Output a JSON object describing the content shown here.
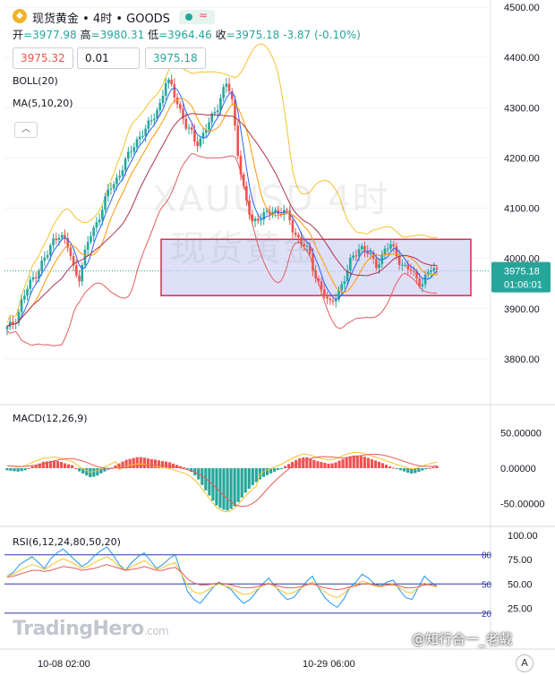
{
  "header": {
    "symbol_title": "现货黄金 • 4时 • GOODS",
    "coin_icon": "gold-coin-icon",
    "status_icons": [
      "market-open-dot-icon",
      "wave-icon"
    ],
    "ohlc": [
      {
        "label": "开",
        "value": "=3977.98"
      },
      {
        "label": "高",
        "value": "=3980.31"
      },
      {
        "label": "低",
        "value": "=3964.46"
      },
      {
        "label": "收",
        "value": "=3975.18"
      }
    ],
    "change": "-3.87 (-0.10%)",
    "sell_price": "3975.32",
    "quantity": "0.01",
    "buy_price": "3975.18"
  },
  "indicators": {
    "boll": "BOLL(20)",
    "ma": "MA(5,10,20)",
    "macd": "MACD(12,26,9)",
    "rsi": "RSI(6,12,24,80,50,20)"
  },
  "watermark": {
    "line1": "XAUUSD 4时",
    "line2": "现货黄金"
  },
  "branding": {
    "name": "TradingHero",
    "suffix": ".com",
    "credit": "@知行合一_老戴",
    "logo_letter": "A"
  },
  "colors": {
    "up": "#26a69a",
    "down": "#ef5350",
    "box_fill": "#c8ccf3",
    "box_border": "#e0284f",
    "boll": "#f5c22b",
    "ma_slow": "#e55c5c",
    "rsi_bands": "#2b35a8"
  },
  "chart_data": [
    {
      "type": "candlestick",
      "title": "现货黄金 • 4时 • GOODS",
      "y_ticks": [
        "4500.00",
        "4400.00",
        "4300.00",
        "4200.00",
        "4100.00",
        "4000.00",
        "3900.00",
        "3800.00"
      ],
      "ylim": [
        3760,
        4500
      ],
      "last_price": "3975.18",
      "countdown": "01:06:01",
      "x_ticks": [
        "10-08 02:00",
        "10-29 06:00"
      ],
      "close_keypoints": [
        3860,
        3870,
        3885,
        3920,
        3940,
        3960,
        3975,
        3995,
        4010,
        4035,
        4050,
        4040,
        4020,
        3980,
        3960,
        4000,
        4040,
        4060,
        4085,
        4110,
        4140,
        4150,
        4170,
        4190,
        4210,
        4230,
        4245,
        4255,
        4270,
        4290,
        4310,
        4350,
        4345,
        4320,
        4290,
        4260,
        4250,
        4230,
        4240,
        4260,
        4280,
        4300,
        4330,
        4350,
        4310,
        4220,
        4150,
        4100,
        4070,
        4080,
        4090,
        4085,
        4095,
        4090,
        4100,
        4080,
        4050,
        4040,
        4030,
        4010,
        3970,
        3950,
        3930,
        3905,
        3920,
        3940,
        3960,
        3990,
        4010,
        4025,
        4015,
        4005,
        3985,
        4000,
        4020,
        4025,
        4010,
        3990,
        3980,
        3975,
        3960,
        3950,
        3965,
        3980,
        3975
      ],
      "range_box": {
        "top": 4038,
        "bottom": 3926
      },
      "series": [
        {
          "name": "BOLL(20)"
        },
        {
          "name": "MA(5,10,20)"
        }
      ]
    },
    {
      "type": "bar",
      "title": "MACD(12,26,9)",
      "y_ticks": [
        "50.00000",
        "0.00000",
        "-50.00000"
      ],
      "ylim": [
        -65,
        65
      ],
      "histogram_keypoints": [
        -3,
        -4,
        -5,
        -3,
        2,
        5,
        9,
        10,
        11,
        9,
        6,
        4,
        -4,
        -9,
        -13,
        -11,
        -6,
        -2,
        3,
        8,
        12,
        14,
        16,
        15,
        13,
        12,
        10,
        9,
        6,
        3,
        0,
        -6,
        -15,
        -28,
        -40,
        -52,
        -58,
        -60,
        -55,
        -45,
        -34,
        -25,
        -18,
        -12,
        -8,
        -4,
        0,
        5,
        10,
        14,
        16,
        13,
        10,
        8,
        6,
        8,
        12,
        16,
        18,
        18,
        16,
        13,
        10,
        7,
        3,
        0,
        -3,
        -6,
        -8,
        -5,
        -2,
        1,
        3
      ]
    },
    {
      "type": "line",
      "title": "RSI(6,12,24,80,50,20)",
      "y_ticks": [
        "100.00",
        "75.00",
        "50.00",
        "25.00"
      ],
      "reference_lines": [
        80,
        50,
        20
      ],
      "reference_labels": [
        "80",
        "50",
        "20"
      ],
      "ylim": [
        0,
        100
      ],
      "series": [
        {
          "values": [
            58,
            62,
            70,
            74,
            78,
            72,
            66,
            76,
            82,
            86,
            80,
            74,
            68,
            72,
            79,
            84,
            88,
            80,
            70,
            64,
            72,
            78,
            82,
            74,
            66,
            70,
            76,
            80,
            60,
            42,
            34,
            30,
            38,
            46,
            52,
            48,
            44,
            36,
            30,
            34,
            42,
            50,
            56,
            48,
            40,
            34,
            36,
            44,
            52,
            58,
            46,
            36,
            30,
            26,
            34,
            46,
            52,
            60,
            56,
            50,
            48,
            52,
            54,
            44,
            36,
            34,
            46,
            58,
            52,
            48
          ]
        },
        {
          "values": [
            58,
            60,
            64,
            67,
            70,
            68,
            65,
            69,
            73,
            76,
            73,
            70,
            66,
            68,
            72,
            75,
            78,
            74,
            68,
            64,
            68,
            71,
            74,
            70,
            65,
            67,
            70,
            72,
            60,
            48,
            42,
            40,
            43,
            47,
            50,
            48,
            46,
            42,
            39,
            40,
            44,
            48,
            51,
            47,
            43,
            40,
            41,
            45,
            49,
            52,
            47,
            42,
            38,
            36,
            40,
            46,
            49,
            53,
            51,
            48,
            47,
            49,
            50,
            46,
            42,
            41,
            46,
            51,
            49,
            47
          ]
        },
        {
          "values": [
            57,
            58,
            60,
            62,
            64,
            64,
            63,
            64,
            66,
            68,
            67,
            66,
            64,
            65,
            66,
            68,
            70,
            68,
            66,
            64,
            65,
            66,
            68,
            66,
            64,
            64,
            66,
            67,
            62,
            55,
            51,
            49,
            49,
            50,
            51,
            50,
            49,
            47,
            46,
            46,
            47,
            49,
            50,
            49,
            47,
            46,
            46,
            47,
            49,
            50,
            48,
            46,
            45,
            44,
            45,
            47,
            48,
            50,
            50,
            49,
            48,
            49,
            49,
            48,
            46,
            46,
            47,
            49,
            49,
            48
          ]
        }
      ]
    }
  ]
}
